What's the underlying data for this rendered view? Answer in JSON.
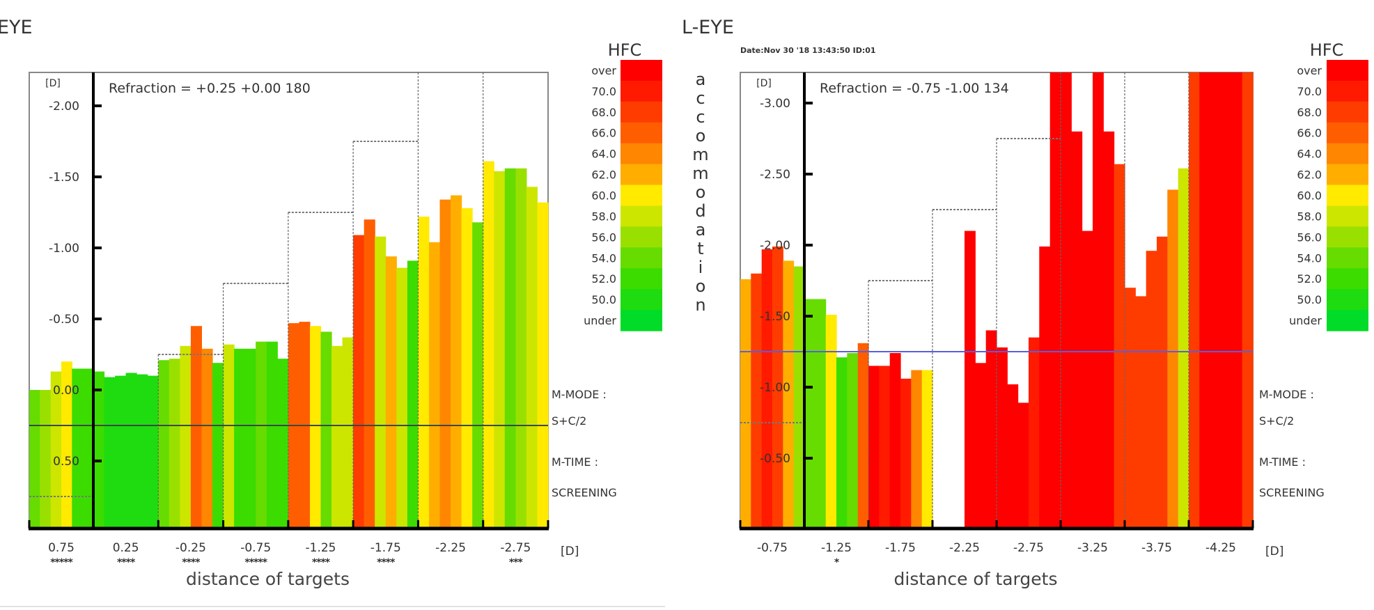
{
  "colors": {
    "hfc_scale": {
      "over": "#ff0000",
      "70.0": "#ff1a00",
      "68.0": "#ff3c00",
      "66.0": "#ff5e00",
      "64.0": "#ff8600",
      "62.0": "#ffae00",
      "60.0": "#ffea00",
      "58.0": "#cce600",
      "56.0": "#99e000",
      "54.0": "#66dc00",
      "52.0": "#3cdc00",
      "50.0": "#1edc10",
      "under": "#00dc28"
    },
    "refraction_line_left": "#3a4a40",
    "refraction_line_right": "#5a5ee0"
  },
  "legend": {
    "title": "HFC",
    "labels": [
      "over",
      "70.0",
      "68.0",
      "66.0",
      "64.0",
      "62.0",
      "60.0",
      "58.0",
      "56.0",
      "54.0",
      "52.0",
      "50.0",
      "under"
    ]
  },
  "side_label": "accommodation",
  "info": {
    "mode_label": "M-MODE :",
    "mode_value": "S+C/2",
    "time_label": "M-TIME :",
    "time_value": "SCREENING"
  },
  "chart_data": [
    {
      "type": "bar",
      "title": "EYE",
      "refraction": "Refraction = +0.25 +0.00 180",
      "ylabel": "[D]",
      "xlabel": "distance of targets",
      "xunit": "[D]",
      "ylim": [
        -2.235,
        0.975
      ],
      "yticks": [
        -2.0,
        -1.5,
        -1.0,
        -0.5,
        0.0,
        0.5
      ],
      "ytick_labels": [
        "-2.00",
        "-1.50",
        "-1.00",
        "-0.50",
        "0.00",
        "0.50"
      ],
      "refraction_line": 0.25,
      "categories": [
        "0.75",
        "0.25",
        "-0.25",
        "-0.75",
        "-1.25",
        "-1.75",
        "-2.25",
        "-2.75"
      ],
      "targets": [
        0.75,
        0.25,
        -0.25,
        -0.75,
        -1.25,
        -1.75,
        -2.25,
        -2.75
      ],
      "marks": [
        "*****",
        "****",
        "****",
        "*****",
        "****",
        "****",
        "",
        "***"
      ],
      "bars": [
        [
          [
            0.0,
            "54.0"
          ],
          [
            0.0,
            "56.0"
          ],
          [
            -0.13,
            "58.0"
          ],
          [
            -0.2,
            "60.0"
          ],
          [
            -0.15,
            "52.0"
          ],
          [
            -0.15,
            "52.0"
          ]
        ],
        [
          [
            -0.13,
            "52.0"
          ],
          [
            -0.09,
            "50.0"
          ],
          [
            -0.1,
            "50.0"
          ],
          [
            -0.12,
            "50.0"
          ],
          [
            -0.11,
            "50.0"
          ],
          [
            -0.1,
            "50.0"
          ]
        ],
        [
          [
            -0.21,
            "54.0"
          ],
          [
            -0.22,
            "56.0"
          ],
          [
            -0.31,
            "58.0"
          ],
          [
            -0.45,
            "66.0"
          ],
          [
            -0.29,
            "64.0"
          ],
          [
            -0.19,
            "52.0"
          ]
        ],
        [
          [
            -0.32,
            "58.0"
          ],
          [
            -0.29,
            "52.0"
          ],
          [
            -0.29,
            "52.0"
          ],
          [
            -0.34,
            "54.0"
          ],
          [
            -0.34,
            "52.0"
          ],
          [
            -0.22,
            "52.0"
          ]
        ],
        [
          [
            -0.47,
            "66.0"
          ],
          [
            -0.48,
            "66.0"
          ],
          [
            -0.45,
            "60.0"
          ],
          [
            -0.41,
            "54.0"
          ],
          [
            -0.31,
            "58.0"
          ],
          [
            -0.37,
            "58.0"
          ]
        ],
        [
          [
            -1.09,
            "68.0"
          ],
          [
            -1.2,
            "66.0"
          ],
          [
            -1.08,
            "58.0"
          ],
          [
            -0.94,
            "62.0"
          ],
          [
            -0.86,
            "58.0"
          ],
          [
            -0.91,
            "52.0"
          ]
        ],
        [
          [
            -1.22,
            "60.0"
          ],
          [
            -1.04,
            "62.0"
          ],
          [
            -1.34,
            "64.0"
          ],
          [
            -1.37,
            "62.0"
          ],
          [
            -1.28,
            "60.0"
          ],
          [
            -1.18,
            "54.0"
          ]
        ],
        [
          [
            -1.61,
            "60.0"
          ],
          [
            -1.54,
            "58.0"
          ],
          [
            -1.56,
            "54.0"
          ],
          [
            -1.56,
            "56.0"
          ],
          [
            -1.43,
            "58.0"
          ],
          [
            -1.32,
            "60.0"
          ]
        ]
      ]
    },
    {
      "type": "bar",
      "title": "L-EYE",
      "date": "Date:Nov 30 '18 13:43:50   ID:01",
      "refraction": "Refraction = -0.75 -1.00 134",
      "ylabel": "[D]",
      "xlabel": "distance of targets",
      "xunit": "[D]",
      "ylim": [
        -3.22,
        0.0
      ],
      "yticks": [
        -3.0,
        -2.5,
        -2.0,
        -1.5,
        -1.0,
        -0.5
      ],
      "ytick_labels": [
        "-3.00",
        "-2.50",
        "-2.00",
        "-1.50",
        "-1.00",
        "-0.50"
      ],
      "refraction_line": -1.25,
      "categories": [
        "-0.75",
        "-1.25",
        "-1.75",
        "-2.25",
        "-2.75",
        "-3.25",
        "-3.75",
        "-4.25"
      ],
      "targets": [
        -0.75,
        -1.25,
        -1.75,
        -2.25,
        -2.75,
        -3.25,
        -3.75,
        -4.25
      ],
      "marks": [
        "",
        "*",
        "",
        "",
        "",
        "",
        "",
        ""
      ],
      "bars": [
        [
          [
            -1.76,
            "62.0"
          ],
          [
            -1.8,
            "68.0"
          ],
          [
            -1.97,
            "70.0"
          ],
          [
            -1.99,
            "68.0"
          ],
          [
            -1.89,
            "62.0"
          ],
          [
            -1.85,
            "56.0"
          ]
        ],
        [
          [
            -1.62,
            "54.0"
          ],
          [
            -1.62,
            "54.0"
          ],
          [
            -1.51,
            "60.0"
          ],
          [
            -1.21,
            "52.0"
          ],
          [
            -1.24,
            "54.0"
          ],
          [
            -1.31,
            "66.0"
          ]
        ],
        [
          [
            -1.15,
            "over"
          ],
          [
            -1.15,
            "70.0"
          ],
          [
            -1.24,
            "over"
          ],
          [
            -1.06,
            "70.0"
          ],
          [
            -1.12,
            "64.0"
          ],
          [
            -1.12,
            "60.0"
          ]
        ],
        [
          [
            null,
            null
          ],
          [
            null,
            null
          ],
          [
            null,
            null
          ],
          [
            -2.1,
            "over"
          ],
          [
            -1.17,
            "over"
          ],
          [
            -1.4,
            "over"
          ]
        ],
        [
          [
            -1.28,
            "over"
          ],
          [
            -1.02,
            "over"
          ],
          [
            -0.89,
            "over"
          ],
          [
            -1.35,
            "70.0"
          ],
          [
            -1.99,
            "over"
          ],
          [
            -3.3,
            "over"
          ]
        ],
        [
          [
            -3.3,
            "over"
          ],
          [
            -2.8,
            "over"
          ],
          [
            -2.1,
            "over"
          ],
          [
            -3.3,
            "over"
          ],
          [
            -2.8,
            "over"
          ],
          [
            -2.57,
            "68.0"
          ]
        ],
        [
          [
            -1.7,
            "68.0"
          ],
          [
            -1.64,
            "68.0"
          ],
          [
            -1.96,
            "68.0"
          ],
          [
            -2.06,
            "68.0"
          ],
          [
            -2.39,
            "64.0"
          ],
          [
            -2.54,
            "58.0"
          ]
        ],
        [
          [
            -3.3,
            "68.0"
          ],
          [
            -3.3,
            "over"
          ],
          [
            -3.3,
            "over"
          ],
          [
            -3.3,
            "over"
          ],
          [
            -3.3,
            "over"
          ],
          [
            -3.3,
            "68.0"
          ]
        ]
      ]
    }
  ]
}
